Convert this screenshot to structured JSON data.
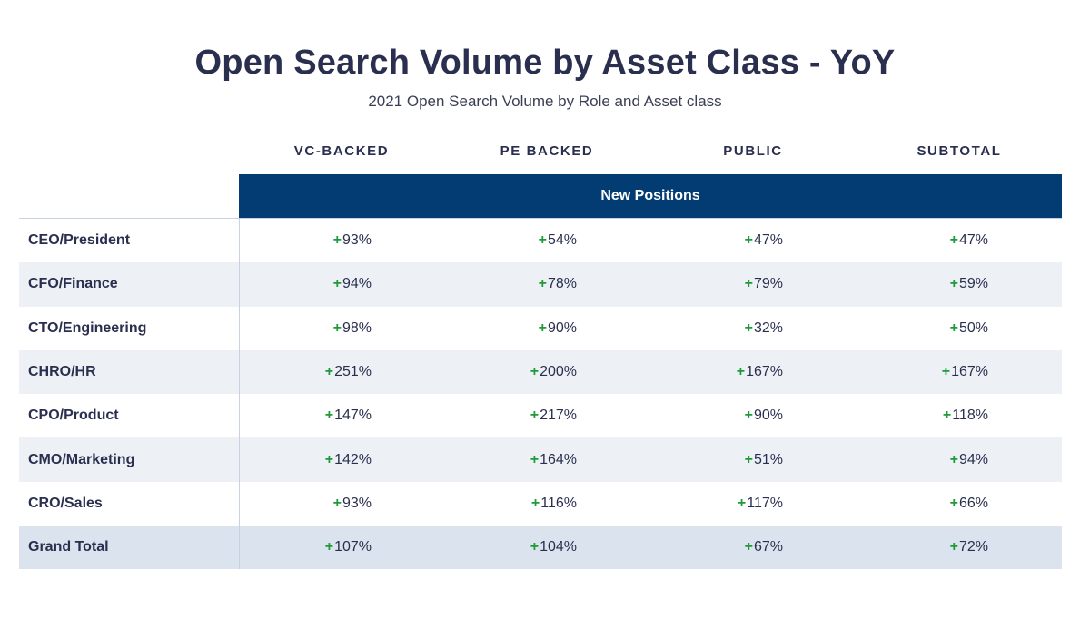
{
  "title": "Open Search Volume by Asset Class - YoY",
  "subtitle": "2021 Open Search Volume by Role and Asset class",
  "columns": [
    "VC-BACKED",
    "PE BACKED",
    "PUBLIC",
    "SUBTOTAL"
  ],
  "banner": "New Positions",
  "colors": {
    "banner": "#023c73",
    "positive": "#1f9a3a",
    "text": "#2a2f4f",
    "stripe": "#edf1f6",
    "total": "#dbe3ee"
  },
  "chart_data": {
    "type": "table",
    "title": "Open Search Volume by Asset Class - YoY",
    "subtitle": "2021 Open Search Volume by Role and Asset class",
    "group_header": "New Positions",
    "columns": [
      "VC-BACKED",
      "PE BACKED",
      "PUBLIC",
      "SUBTOTAL"
    ],
    "rows": [
      {
        "label": "CEO/President",
        "values": [
          "93%",
          "54%",
          "47%",
          "47%"
        ]
      },
      {
        "label": "CFO/Finance",
        "values": [
          "94%",
          "78%",
          "79%",
          "59%"
        ]
      },
      {
        "label": "CTO/Engineering",
        "values": [
          "98%",
          "90%",
          "32%",
          "50%"
        ]
      },
      {
        "label": "CHRO/HR",
        "values": [
          "251%",
          "200%",
          "167%",
          "167%"
        ]
      },
      {
        "label": "CPO/Product",
        "values": [
          "147%",
          "217%",
          "90%",
          "118%"
        ]
      },
      {
        "label": "CMO/Marketing",
        "values": [
          "142%",
          "164%",
          "51%",
          "94%"
        ]
      },
      {
        "label": "CRO/Sales",
        "values": [
          "93%",
          "116%",
          "117%",
          "66%"
        ]
      },
      {
        "label": "Grand Total",
        "values": [
          "107%",
          "104%",
          "67%",
          "72%"
        ]
      }
    ],
    "sign": "+"
  }
}
